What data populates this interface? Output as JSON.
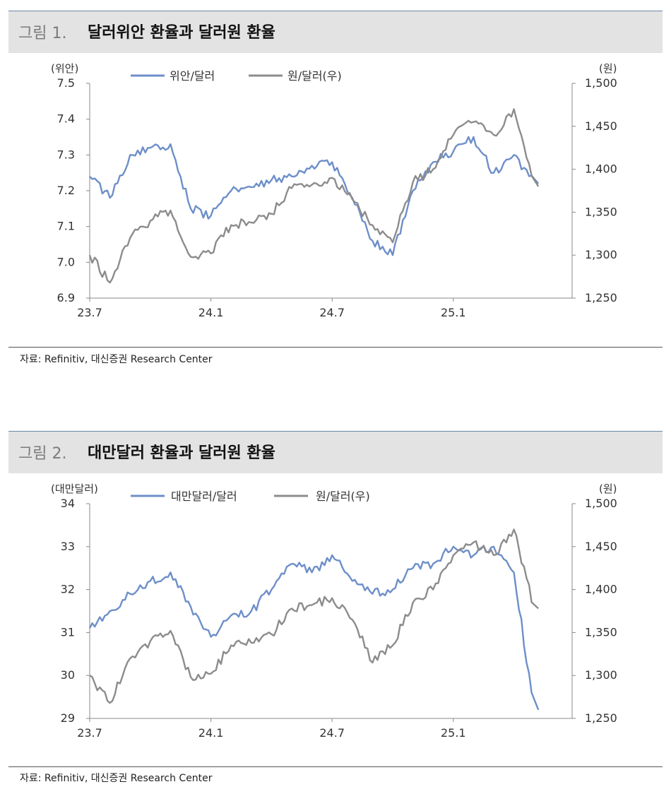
{
  "figures": [
    {
      "number": "그림 1.",
      "title": "달러위안 환율과 달러원 환율",
      "source": "자료: Refinitiv, 대신증권 Research Center",
      "chart_data": {
        "type": "line",
        "left_axis_unit": "(위안)",
        "right_axis_unit": "(원)",
        "left_ticks": [
          "7.5",
          "7.4",
          "7.3",
          "7.2",
          "7.1",
          "7.0",
          "6.9"
        ],
        "right_ticks": [
          "1,500",
          "1,450",
          "1,400",
          "1,350",
          "1,300",
          "1,250"
        ],
        "x_ticks": [
          "23.7",
          "24.1",
          "24.7",
          "25.1"
        ],
        "ylim_left": [
          6.9,
          7.5
        ],
        "ylim_right": [
          1250,
          1500
        ],
        "x": [
          "2023-07",
          "2023-08",
          "2023-09",
          "2023-10",
          "2023-11",
          "2023-12",
          "2024-01",
          "2024-02",
          "2024-03",
          "2024-04",
          "2024-05",
          "2024-06",
          "2024-07",
          "2024-08",
          "2024-09",
          "2024-10",
          "2024-11",
          "2024-12",
          "2025-01",
          "2025-02",
          "2025-03",
          "2025-04",
          "2025-05"
        ],
        "grid": false,
        "legend_position": "top-center",
        "series": [
          {
            "name": "위안/달러",
            "axis": "left",
            "color": "#6d8fc9",
            "values": [
              7.24,
              7.18,
              7.3,
              7.32,
              7.33,
              7.15,
              7.13,
              7.2,
              7.21,
              7.23,
              7.24,
              7.27,
              7.28,
              7.18,
              7.06,
              7.02,
              7.2,
              7.28,
              7.31,
              7.35,
              7.25,
              7.3,
              7.22
            ]
          },
          {
            "name": "원/달러(우)",
            "axis": "right",
            "color": "#8c8c8c",
            "values": [
              1300,
              1268,
              1320,
              1340,
              1352,
              1298,
              1302,
              1335,
              1338,
              1348,
              1378,
              1382,
              1390,
              1365,
              1335,
              1315,
              1385,
              1400,
              1440,
              1455,
              1440,
              1470,
              1380
            ]
          }
        ]
      }
    },
    {
      "number": "그림 2.",
      "title": "대만달러 환율과 달러원 환율",
      "source": "자료: Refinitiv, 대신증권 Research Center",
      "chart_data": {
        "type": "line",
        "left_axis_unit": "(대만달러)",
        "right_axis_unit": "(원)",
        "left_ticks": [
          "34",
          "33",
          "32",
          "31",
          "30",
          "29"
        ],
        "right_ticks": [
          "1,500",
          "1,450",
          "1,400",
          "1,350",
          "1,300",
          "1,250"
        ],
        "x_ticks": [
          "23.7",
          "24.1",
          "24.7",
          "25.1"
        ],
        "ylim_left": [
          29,
          34
        ],
        "ylim_right": [
          1250,
          1500
        ],
        "x": [
          "2023-07",
          "2023-08",
          "2023-09",
          "2023-10",
          "2023-11",
          "2023-12",
          "2024-01",
          "2024-02",
          "2024-03",
          "2024-04",
          "2024-05",
          "2024-06",
          "2024-07",
          "2024-08",
          "2024-09",
          "2024-10",
          "2024-11",
          "2024-12",
          "2025-01",
          "2025-02",
          "2025-03",
          "2025-04",
          "2025-05"
        ],
        "grid": false,
        "legend_position": "top-center",
        "series": [
          {
            "name": "대만달러/달러",
            "axis": "left",
            "color": "#6d8fc9",
            "values": [
              31.1,
              31.5,
              31.9,
              32.2,
              32.4,
              31.6,
              30.9,
              31.4,
              31.5,
              32.0,
              32.6,
              32.4,
              32.8,
              32.2,
              31.9,
              32.0,
              32.5,
              32.6,
              33.0,
              32.8,
              33.0,
              32.4,
              29.2
            ]
          },
          {
            "name": "원/달러(우)",
            "axis": "right",
            "color": "#8c8c8c",
            "values": [
              1300,
              1268,
              1320,
              1340,
              1352,
              1298,
              1302,
              1335,
              1338,
              1348,
              1378,
              1382,
              1390,
              1365,
              1315,
              1335,
              1385,
              1400,
              1440,
              1455,
              1440,
              1470,
              1378
            ]
          }
        ]
      }
    }
  ]
}
